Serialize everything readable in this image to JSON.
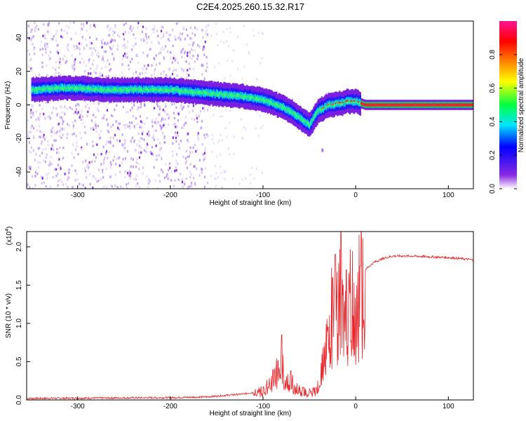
{
  "title": "C2E4.2025.260.15.32.R17",
  "chart_data": [
    {
      "type": "heatmap",
      "xlabel": "Height of straight line (km)",
      "ylabel": "Frequency (Hz)",
      "xlim": [
        -355,
        127
      ],
      "ylim": [
        -50,
        50
      ],
      "xticks": [
        -300,
        -200,
        -100,
        0,
        100
      ],
      "xtick_labels": [
        "-300",
        "-200",
        "-100",
        "0",
        "100"
      ],
      "yticks": [
        -40,
        -20,
        0,
        20,
        40
      ],
      "ytick_labels": [
        "-40",
        "-20",
        "0",
        "20",
        "40"
      ],
      "colorbar": {
        "label": "Normalized spectral amplitude",
        "range": [
          0,
          1
        ],
        "ticks": [
          0.0,
          0.2,
          0.4,
          0.6,
          0.8
        ],
        "tick_labels": [
          "0.0",
          "0.2",
          "0.4",
          "0.6",
          "0.8"
        ],
        "colors": [
          "#ffffff",
          "#8a2be2",
          "#0000ff",
          "#00e5ff",
          "#00ff40",
          "#ffff00",
          "#ff8000",
          "#ff0000",
          "#ff1493"
        ]
      },
      "band": {
        "x": [
          -350,
          -320,
          -300,
          -270,
          -240,
          -220,
          -200,
          -180,
          -160,
          -140,
          -120,
          -100,
          -90,
          -80,
          -70,
          -60,
          -55,
          -50,
          -45,
          -40,
          -35,
          -30,
          -25,
          -20,
          -15,
          -10,
          -5,
          0,
          10,
          50,
          127
        ],
        "y": [
          9,
          10,
          10,
          9,
          9,
          9,
          9,
          8,
          7,
          6,
          5,
          3,
          1,
          -1,
          -4,
          -8,
          -10,
          -12,
          -7,
          -3,
          -2,
          0,
          0,
          1,
          1,
          2,
          2,
          2,
          0,
          0,
          0
        ]
      }
    },
    {
      "type": "line",
      "xlabel": "Height of straight line (km)",
      "ylabel": "SNR (10 * v/v)",
      "multiplier_label": "(x10",
      "multiplier_exp": "4",
      "xlim": [
        -355,
        127
      ],
      "ylim": [
        0,
        2.2
      ],
      "xticks": [
        -300,
        -200,
        -100,
        0,
        100
      ],
      "xtick_labels": [
        "-300",
        "-200",
        "-100",
        "0",
        "100"
      ],
      "yticks": [
        0.0,
        0.5,
        1.0,
        1.5,
        2.0
      ],
      "ytick_labels": [
        "0.0",
        "0.5",
        "1.0",
        "1.5",
        "2.0"
      ],
      "color": "#e8262a",
      "envelope": {
        "x": [
          -355,
          -200,
          -160,
          -120,
          -100,
          -95,
          -90,
          -85,
          -80,
          -75,
          -70,
          -65,
          -60,
          -50,
          -45,
          -40,
          -35,
          -30,
          -25,
          -20,
          -18,
          -15,
          -10,
          -5,
          0,
          5,
          10,
          20,
          30,
          40,
          50,
          60,
          80,
          100,
          110,
          127
        ],
        "y": [
          0.02,
          0.03,
          0.04,
          0.08,
          0.12,
          0.22,
          0.28,
          0.4,
          0.45,
          0.3,
          0.25,
          0.18,
          0.12,
          0.1,
          0.12,
          0.2,
          0.5,
          0.9,
          1.2,
          1.3,
          1.4,
          1.2,
          1.25,
          1.35,
          1.45,
          1.55,
          1.7,
          1.8,
          1.85,
          1.88,
          1.88,
          1.88,
          1.87,
          1.86,
          1.85,
          1.83
        ]
      },
      "spikes": [
        {
          "x": -80,
          "y": 0.85
        },
        {
          "x": -30,
          "y": 0.95
        },
        {
          "x": -25,
          "y": 1.6
        },
        {
          "x": -22,
          "y": 1.9
        },
        {
          "x": -16,
          "y": 2.2
        },
        {
          "x": -10,
          "y": 1.7
        },
        {
          "x": 5,
          "y": 1.75
        }
      ]
    }
  ]
}
